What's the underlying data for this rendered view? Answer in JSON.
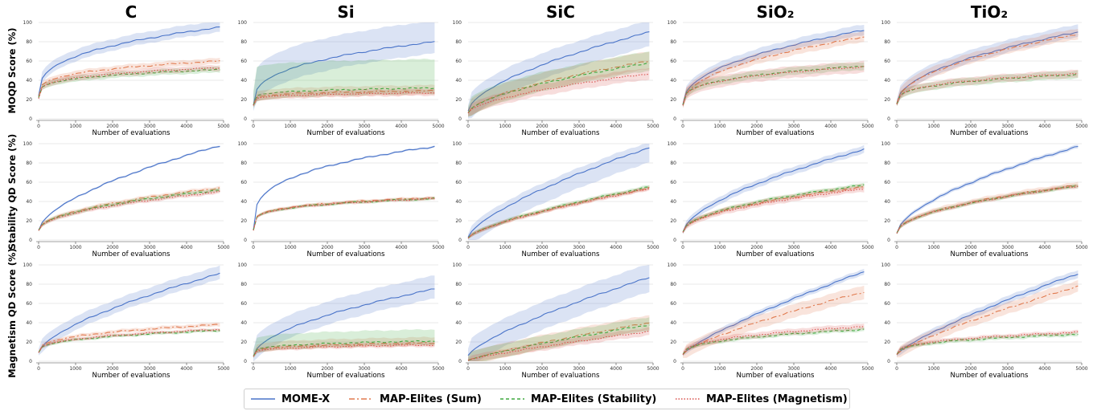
{
  "figure": {
    "col_titles": [
      "C",
      "Si",
      "SiC",
      "SiO₂",
      "TiO₂"
    ],
    "row_labels": [
      "MOQD Score (%)",
      "Stability QD Score (%)",
      "Magnetism QD Score (%)"
    ],
    "xlabel": "Number of evaluations",
    "xticks": [
      0,
      1000,
      2000,
      3000,
      4000,
      5000
    ],
    "yticks": [
      0,
      20,
      40,
      60,
      80,
      100
    ]
  },
  "legend": {
    "items": [
      {
        "label": "MOME-X",
        "color": "#4a74c9",
        "dash": ""
      },
      {
        "label": "MAP-Elites (Sum)",
        "color": "#e07a4f",
        "dash": "7,3,2,3"
      },
      {
        "label": "MAP-Elites (Stability)",
        "color": "#3fa83f",
        "dash": "4,3"
      },
      {
        "label": "MAP-Elites (Magnetism)",
        "color": "#d9534f",
        "dash": "1.5,2"
      }
    ]
  },
  "chart_data": [
    {
      "type": "line",
      "row": "MOQD Score (%)",
      "title": "C",
      "xlim": [
        0,
        5000
      ],
      "ylim": [
        0,
        100
      ],
      "series": [
        {
          "name": "MOME-X",
          "y0": 24,
          "y_end": 95,
          "shape": 0.35,
          "band": [
            5,
            7
          ]
        },
        {
          "name": "MAP-Elites (Sum)",
          "y0": 23,
          "y_end": 60,
          "shape": 0.28,
          "band": [
            3,
            3
          ]
        },
        {
          "name": "MAP-Elites (Stability)",
          "y0": 22,
          "y_end": 51,
          "shape": 0.25,
          "band": [
            3,
            3
          ]
        },
        {
          "name": "MAP-Elites (Magnetism)",
          "y0": 21,
          "y_end": 53,
          "shape": 0.25,
          "band": [
            3,
            3
          ]
        }
      ]
    },
    {
      "type": "line",
      "row": "MOQD Score (%)",
      "title": "Si",
      "xlim": [
        0,
        5000
      ],
      "ylim": [
        0,
        100
      ],
      "series": [
        {
          "name": "MOME-X",
          "y0": 14,
          "y_end": 80,
          "shape": 0.35,
          "band": [
            12,
            22
          ]
        },
        {
          "name": "MAP-Elites (Sum)",
          "y0": 14,
          "y_end": 29,
          "shape": 0.15,
          "band": [
            4,
            6
          ]
        },
        {
          "name": "MAP-Elites (Stability)",
          "y0": 14,
          "y_end": 32,
          "shape": 0.15,
          "band": [
            6,
            30
          ]
        },
        {
          "name": "MAP-Elites (Magnetism)",
          "y0": 14,
          "y_end": 27,
          "shape": 0.15,
          "band": [
            3,
            4
          ]
        }
      ]
    },
    {
      "type": "line",
      "row": "MOQD Score (%)",
      "title": "SiC",
      "xlim": [
        0,
        5000
      ],
      "ylim": [
        0,
        100
      ],
      "series": [
        {
          "name": "MOME-X",
          "y0": 8,
          "y_end": 90,
          "shape": 0.6,
          "band": [
            15,
            12
          ]
        },
        {
          "name": "MAP-Elites (Sum)",
          "y0": 6,
          "y_end": 60,
          "shape": 0.6,
          "band": [
            8,
            10
          ]
        },
        {
          "name": "MAP-Elites (Stability)",
          "y0": 6,
          "y_end": 58,
          "shape": 0.6,
          "band": [
            8,
            12
          ]
        },
        {
          "name": "MAP-Elites (Magnetism)",
          "y0": 6,
          "y_end": 47,
          "shape": 0.6,
          "band": [
            6,
            6
          ]
        }
      ]
    },
    {
      "type": "line",
      "row": "MOQD Score (%)",
      "title": "SiO₂",
      "xlim": [
        0,
        5000
      ],
      "ylim": [
        0,
        100
      ],
      "series": [
        {
          "name": "MOME-X",
          "y0": 15,
          "y_end": 92,
          "shape": 0.45,
          "band": [
            5,
            6
          ]
        },
        {
          "name": "MAP-Elites (Sum)",
          "y0": 14,
          "y_end": 85,
          "shape": 0.45,
          "band": [
            5,
            6
          ]
        },
        {
          "name": "MAP-Elites (Stability)",
          "y0": 14,
          "y_end": 55,
          "shape": 0.3,
          "band": [
            4,
            4
          ]
        },
        {
          "name": "MAP-Elites (Magnetism)",
          "y0": 14,
          "y_end": 54,
          "shape": 0.3,
          "band": [
            6,
            6
          ]
        }
      ]
    },
    {
      "type": "line",
      "row": "MOQD Score (%)",
      "title": "TiO₂",
      "xlim": [
        0,
        5000
      ],
      "ylim": [
        0,
        100
      ],
      "series": [
        {
          "name": "MOME-X",
          "y0": 16,
          "y_end": 90,
          "shape": 0.5,
          "band": [
            5,
            8
          ]
        },
        {
          "name": "MAP-Elites (Sum)",
          "y0": 16,
          "y_end": 88,
          "shape": 0.5,
          "band": [
            5,
            6
          ]
        },
        {
          "name": "MAP-Elites (Stability)",
          "y0": 15,
          "y_end": 46,
          "shape": 0.3,
          "band": [
            4,
            4
          ]
        },
        {
          "name": "MAP-Elites (Magnetism)",
          "y0": 15,
          "y_end": 47,
          "shape": 0.3,
          "band": [
            4,
            4
          ]
        }
      ]
    },
    {
      "type": "line",
      "row": "Stability QD Score (%)",
      "title": "C",
      "xlim": [
        0,
        5000
      ],
      "ylim": [
        0,
        100
      ],
      "series": [
        {
          "name": "MOME-X",
          "y0": 10,
          "y_end": 98,
          "shape": 0.6,
          "band": [
            1,
            1
          ]
        },
        {
          "name": "MAP-Elites (Sum)",
          "y0": 10,
          "y_end": 54,
          "shape": 0.5,
          "band": [
            2,
            2
          ]
        },
        {
          "name": "MAP-Elites (Stability)",
          "y0": 10,
          "y_end": 52,
          "shape": 0.5,
          "band": [
            2,
            2
          ]
        },
        {
          "name": "MAP-Elites (Magnetism)",
          "y0": 10,
          "y_end": 50,
          "shape": 0.5,
          "band": [
            2,
            2
          ]
        }
      ]
    },
    {
      "type": "line",
      "row": "Stability QD Score (%)",
      "title": "Si",
      "xlim": [
        0,
        5000
      ],
      "ylim": [
        0,
        100
      ],
      "series": [
        {
          "name": "MOME-X",
          "y0": 10,
          "y_end": 97,
          "shape": 0.3,
          "band": [
            1,
            1
          ]
        },
        {
          "name": "MAP-Elites (Sum)",
          "y0": 10,
          "y_end": 44,
          "shape": 0.22,
          "band": [
            1.5,
            1.5
          ]
        },
        {
          "name": "MAP-Elites (Stability)",
          "y0": 10,
          "y_end": 43,
          "shape": 0.22,
          "band": [
            1.5,
            1.5
          ]
        },
        {
          "name": "MAP-Elites (Magnetism)",
          "y0": 10,
          "y_end": 43,
          "shape": 0.22,
          "band": [
            1.5,
            1.5
          ]
        }
      ]
    },
    {
      "type": "line",
      "row": "Stability QD Score (%)",
      "title": "SiC",
      "xlim": [
        0,
        5000
      ],
      "ylim": [
        0,
        100
      ],
      "series": [
        {
          "name": "MOME-X",
          "y0": 3,
          "y_end": 96,
          "shape": 0.7,
          "band": [
            15,
            6
          ]
        },
        {
          "name": "MAP-Elites (Sum)",
          "y0": 2,
          "y_end": 54,
          "shape": 0.7,
          "band": [
            2,
            2
          ]
        },
        {
          "name": "MAP-Elites (Stability)",
          "y0": 2,
          "y_end": 55,
          "shape": 0.7,
          "band": [
            2,
            2
          ]
        },
        {
          "name": "MAP-Elites (Magnetism)",
          "y0": 2,
          "y_end": 53,
          "shape": 0.7,
          "band": [
            2,
            2
          ]
        }
      ]
    },
    {
      "type": "line",
      "row": "Stability QD Score (%)",
      "title": "SiO₂",
      "xlim": [
        0,
        5000
      ],
      "ylim": [
        0,
        100
      ],
      "series": [
        {
          "name": "MOME-X",
          "y0": 8,
          "y_end": 94,
          "shape": 0.6,
          "band": [
            4,
            4
          ]
        },
        {
          "name": "MAP-Elites (Sum)",
          "y0": 8,
          "y_end": 55,
          "shape": 0.5,
          "band": [
            2,
            3
          ]
        },
        {
          "name": "MAP-Elites (Stability)",
          "y0": 8,
          "y_end": 57,
          "shape": 0.5,
          "band": [
            2,
            2
          ]
        },
        {
          "name": "MAP-Elites (Magnetism)",
          "y0": 8,
          "y_end": 53,
          "shape": 0.5,
          "band": [
            3,
            3
          ]
        }
      ]
    },
    {
      "type": "line",
      "row": "Stability QD Score (%)",
      "title": "TiO₂",
      "xlim": [
        0,
        5000
      ],
      "ylim": [
        0,
        100
      ],
      "series": [
        {
          "name": "MOME-X",
          "y0": 7,
          "y_end": 97,
          "shape": 0.6,
          "band": [
            2,
            2
          ]
        },
        {
          "name": "MAP-Elites (Sum)",
          "y0": 7,
          "y_end": 57,
          "shape": 0.5,
          "band": [
            2,
            3
          ]
        },
        {
          "name": "MAP-Elites (Stability)",
          "y0": 7,
          "y_end": 56,
          "shape": 0.5,
          "band": [
            2,
            2
          ]
        },
        {
          "name": "MAP-Elites (Magnetism)",
          "y0": 7,
          "y_end": 56,
          "shape": 0.5,
          "band": [
            2,
            2
          ]
        }
      ]
    },
    {
      "type": "line",
      "row": "Magnetism QD Score (%)",
      "title": "C",
      "xlim": [
        0,
        5000
      ],
      "ylim": [
        0,
        100
      ],
      "series": [
        {
          "name": "MOME-X",
          "y0": 9,
          "y_end": 91,
          "shape": 0.65,
          "band": [
            6,
            8
          ]
        },
        {
          "name": "MAP-Elites (Sum)",
          "y0": 9,
          "y_end": 38,
          "shape": 0.35,
          "band": [
            2,
            2
          ]
        },
        {
          "name": "MAP-Elites (Stability)",
          "y0": 9,
          "y_end": 32,
          "shape": 0.35,
          "band": [
            1.5,
            1.5
          ]
        },
        {
          "name": "MAP-Elites (Magnetism)",
          "y0": 9,
          "y_end": 33,
          "shape": 0.35,
          "band": [
            1.5,
            1.5
          ]
        }
      ]
    },
    {
      "type": "line",
      "row": "Magnetism QD Score (%)",
      "title": "Si",
      "xlim": [
        0,
        5000
      ],
      "ylim": [
        0,
        100
      ],
      "series": [
        {
          "name": "MOME-X",
          "y0": 5,
          "y_end": 75,
          "shape": 0.55,
          "band": [
            10,
            14
          ]
        },
        {
          "name": "MAP-Elites (Sum)",
          "y0": 5,
          "y_end": 19,
          "shape": 0.2,
          "band": [
            3,
            6
          ]
        },
        {
          "name": "MAP-Elites (Stability)",
          "y0": 5,
          "y_end": 21,
          "shape": 0.2,
          "band": [
            4,
            12
          ]
        },
        {
          "name": "MAP-Elites (Magnetism)",
          "y0": 5,
          "y_end": 17,
          "shape": 0.2,
          "band": [
            2,
            3
          ]
        }
      ]
    },
    {
      "type": "line",
      "row": "Magnetism QD Score (%)",
      "title": "SiC",
      "xlim": [
        0,
        5000
      ],
      "ylim": [
        0,
        100
      ],
      "series": [
        {
          "name": "MOME-X",
          "y0": 6,
          "y_end": 87,
          "shape": 0.75,
          "band": [
            15,
            14
          ]
        },
        {
          "name": "MAP-Elites (Sum)",
          "y0": 1,
          "y_end": 40,
          "shape": 0.85,
          "band": [
            7,
            8
          ]
        },
        {
          "name": "MAP-Elites (Stability)",
          "y0": 1,
          "y_end": 38,
          "shape": 0.85,
          "band": [
            6,
            8
          ]
        },
        {
          "name": "MAP-Elites (Magnetism)",
          "y0": 1,
          "y_end": 31,
          "shape": 0.85,
          "band": [
            4,
            4
          ]
        }
      ]
    },
    {
      "type": "line",
      "row": "Magnetism QD Score (%)",
      "title": "SiO₂",
      "xlim": [
        0,
        5000
      ],
      "ylim": [
        0,
        100
      ],
      "series": [
        {
          "name": "MOME-X",
          "y0": 7,
          "y_end": 93,
          "shape": 0.8,
          "band": [
            3,
            3
          ]
        },
        {
          "name": "MAP-Elites (Sum)",
          "y0": 7,
          "y_end": 72,
          "shape": 0.75,
          "band": [
            7,
            7
          ]
        },
        {
          "name": "MAP-Elites (Stability)",
          "y0": 7,
          "y_end": 33,
          "shape": 0.4,
          "band": [
            2,
            2
          ]
        },
        {
          "name": "MAP-Elites (Magnetism)",
          "y0": 7,
          "y_end": 36,
          "shape": 0.4,
          "band": [
            3,
            3
          ]
        }
      ]
    },
    {
      "type": "line",
      "row": "Magnetism QD Score (%)",
      "title": "TiO₂",
      "xlim": [
        0,
        5000
      ],
      "ylim": [
        0,
        100
      ],
      "series": [
        {
          "name": "MOME-X",
          "y0": 7,
          "y_end": 91,
          "shape": 0.8,
          "band": [
            4,
            4
          ]
        },
        {
          "name": "MAP-Elites (Sum)",
          "y0": 7,
          "y_end": 78,
          "shape": 0.8,
          "band": [
            6,
            6
          ]
        },
        {
          "name": "MAP-Elites (Stability)",
          "y0": 7,
          "y_end": 28,
          "shape": 0.35,
          "band": [
            2,
            2
          ]
        },
        {
          "name": "MAP-Elites (Magnetism)",
          "y0": 7,
          "y_end": 30,
          "shape": 0.35,
          "band": [
            2,
            2
          ]
        }
      ]
    }
  ]
}
